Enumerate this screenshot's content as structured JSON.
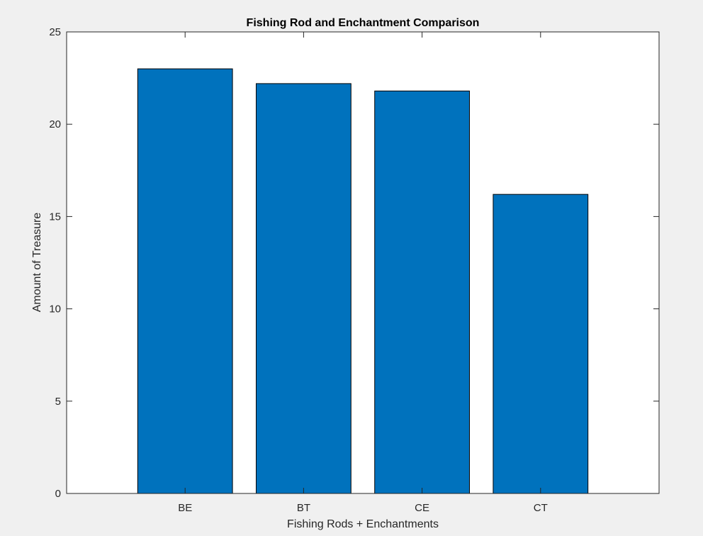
{
  "chart_data": {
    "type": "bar",
    "title": "Fishing Rod and Enchantment Comparison",
    "xlabel": "Fishing Rods + Enchantments",
    "ylabel": "Amount of Treasure",
    "categories": [
      "BE",
      "BT",
      "CE",
      "CT"
    ],
    "values": [
      23.0,
      22.2,
      21.8,
      16.2
    ],
    "ylim": [
      0,
      25
    ],
    "yticks": [
      "0",
      "5",
      "10",
      "15",
      "20",
      "25"
    ],
    "xlim": [
      0,
      5
    ],
    "bar_color": "#0072bd",
    "grid": false,
    "legend": "none"
  }
}
